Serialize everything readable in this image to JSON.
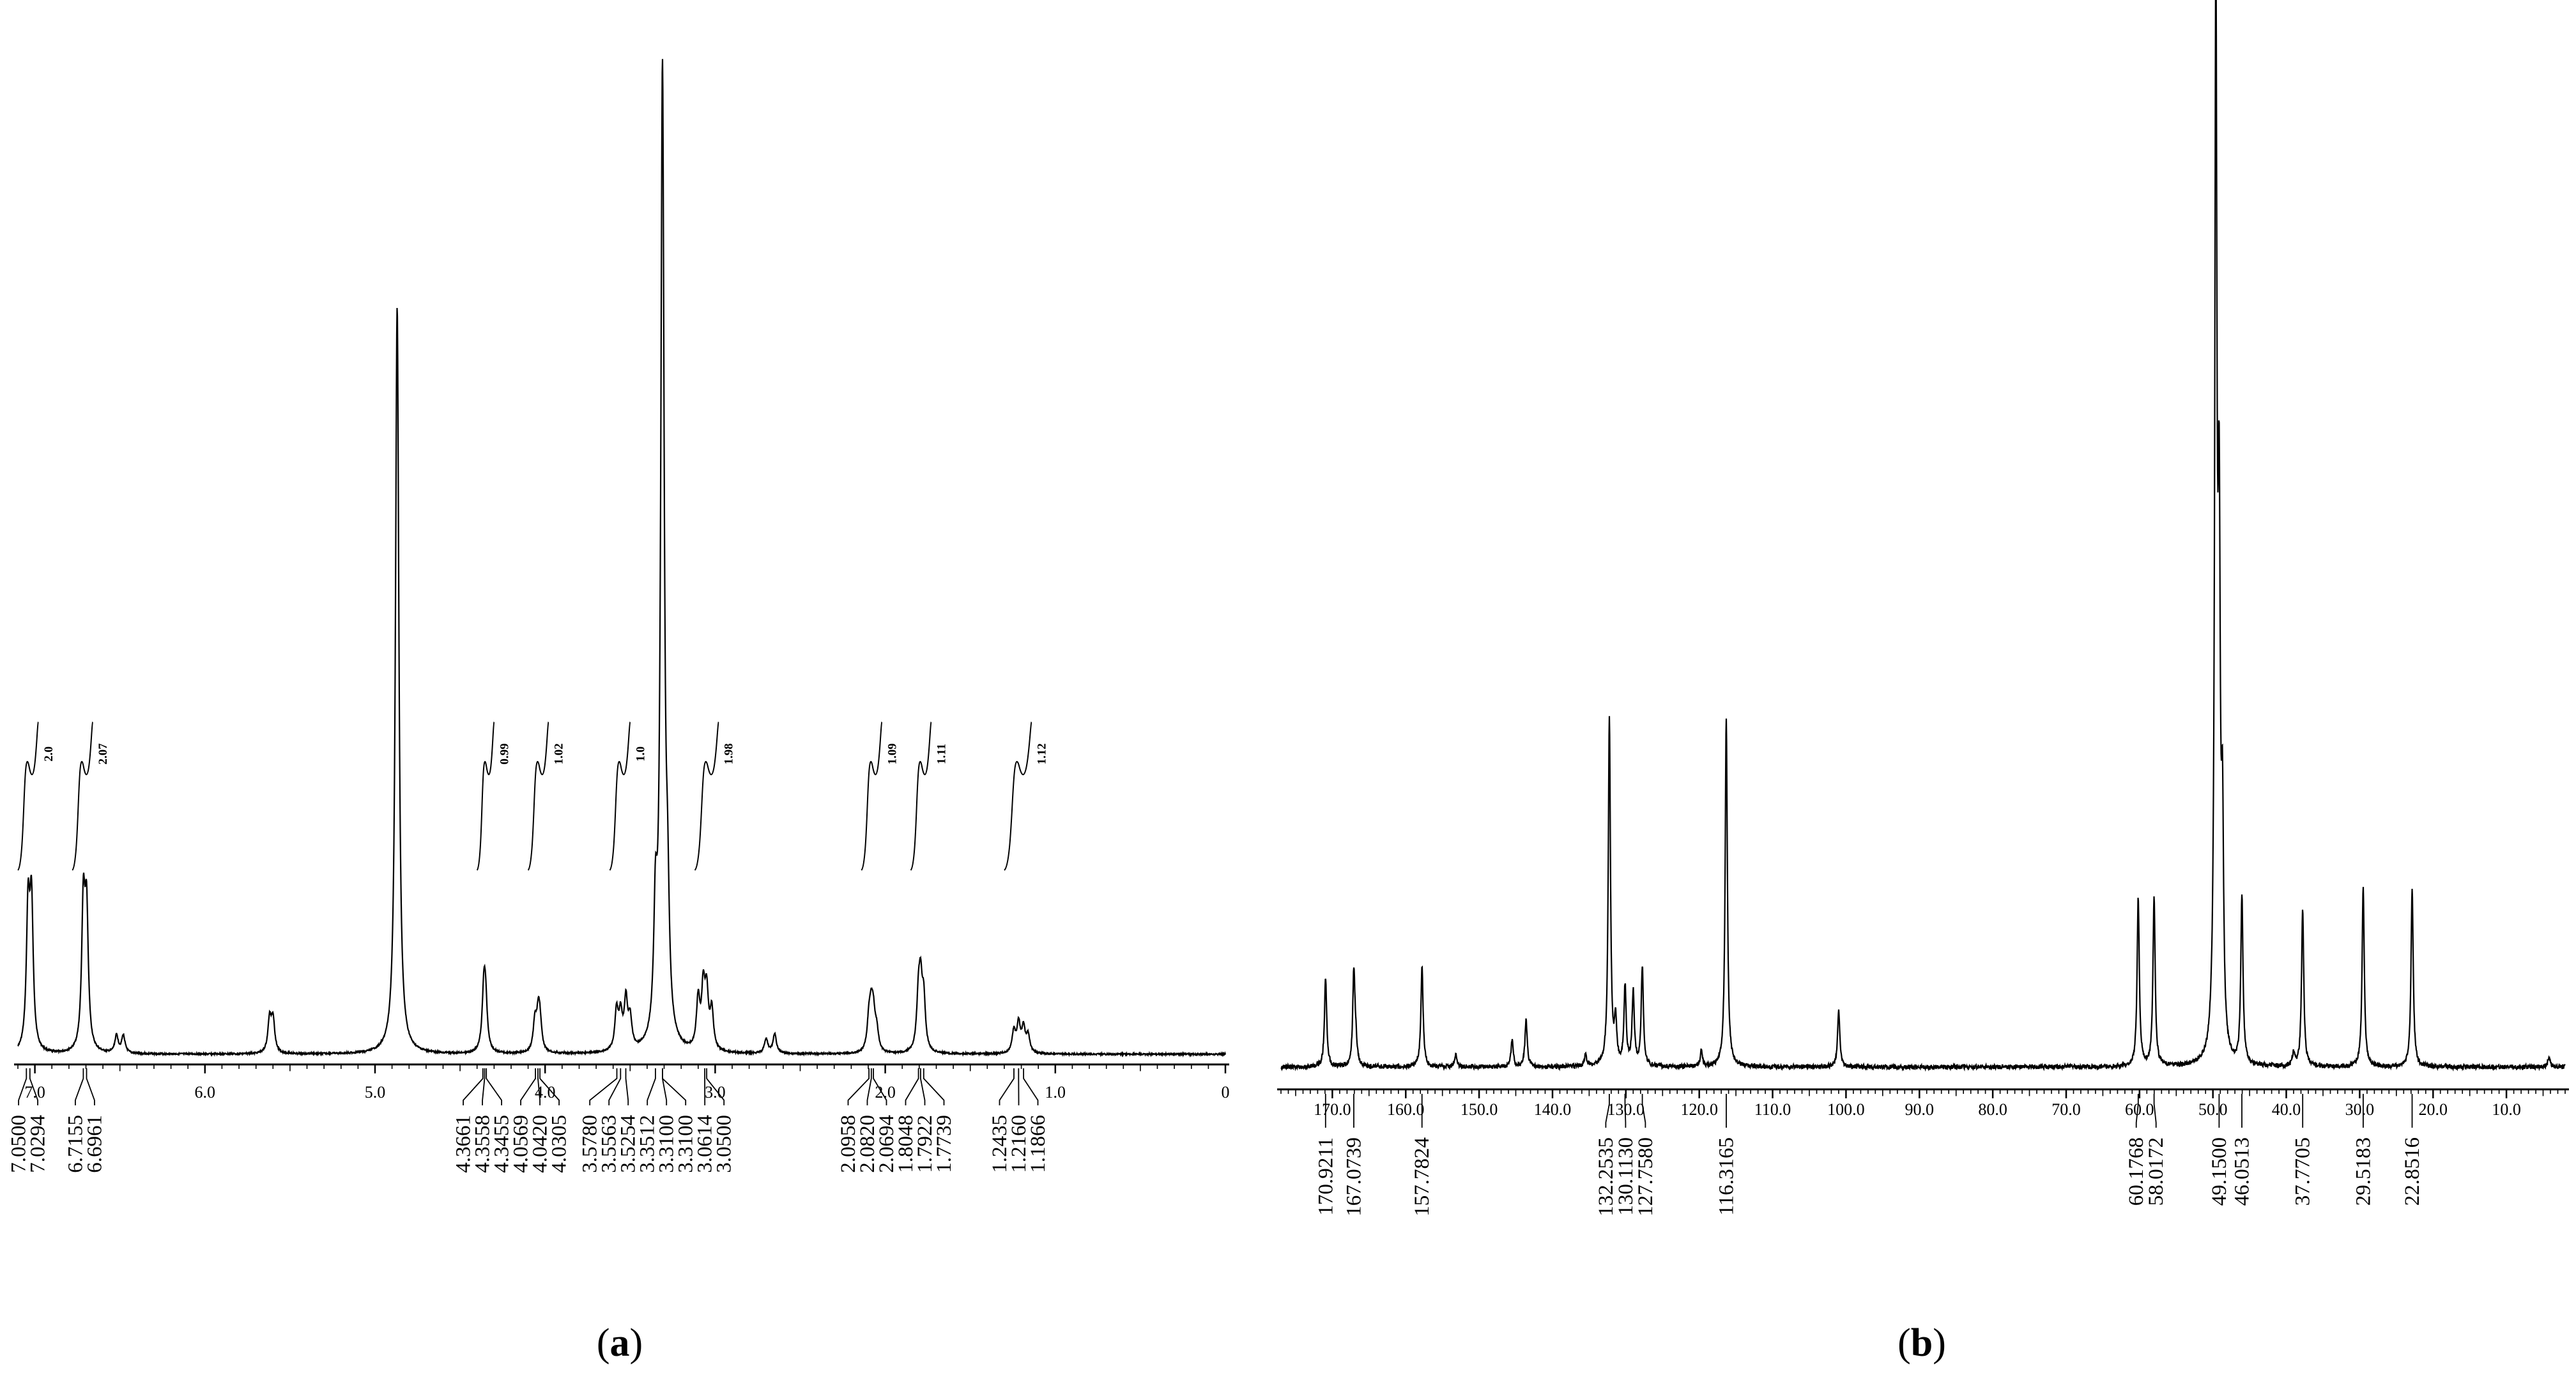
{
  "chart_data": [
    {
      "panel": "a",
      "panel_label": "a",
      "type": "line",
      "x_reversed": true,
      "xlim": [
        7.1,
        0.0
      ],
      "x_ticks": [
        "7.0",
        "6.0",
        "5.0",
        "4.0",
        "3.0",
        "2.0",
        "1.0",
        "0"
      ],
      "x_tick_values": [
        7.0,
        6.0,
        5.0,
        4.0,
        3.0,
        2.0,
        1.0,
        0.0
      ],
      "ylim": [
        0,
        1.0
      ],
      "peaks": [
        {
          "x": 7.04,
          "h": 0.14
        },
        {
          "x": 7.02,
          "h": 0.145
        },
        {
          "x": 6.715,
          "h": 0.145
        },
        {
          "x": 6.696,
          "h": 0.135
        },
        {
          "x": 6.52,
          "h": 0.018
        },
        {
          "x": 6.48,
          "h": 0.018
        },
        {
          "x": 5.62,
          "h": 0.034
        },
        {
          "x": 5.6,
          "h": 0.034
        },
        {
          "x": 4.87,
          "h": 0.77
        },
        {
          "x": 4.36,
          "h": 0.06
        },
        {
          "x": 4.35,
          "h": 0.045
        },
        {
          "x": 4.06,
          "h": 0.03
        },
        {
          "x": 4.04,
          "h": 0.035
        },
        {
          "x": 4.03,
          "h": 0.025
        },
        {
          "x": 3.58,
          "h": 0.04
        },
        {
          "x": 3.556,
          "h": 0.035
        },
        {
          "x": 3.525,
          "h": 0.05
        },
        {
          "x": 3.5,
          "h": 0.03
        },
        {
          "x": 3.351,
          "h": 0.12
        },
        {
          "x": 3.31,
          "h": 1.0
        },
        {
          "x": 3.28,
          "h": 0.11
        },
        {
          "x": 3.1,
          "h": 0.05
        },
        {
          "x": 3.07,
          "h": 0.06
        },
        {
          "x": 3.05,
          "h": 0.055
        },
        {
          "x": 3.02,
          "h": 0.04
        },
        {
          "x": 2.7,
          "h": 0.015
        },
        {
          "x": 2.65,
          "h": 0.02
        },
        {
          "x": 2.096,
          "h": 0.03
        },
        {
          "x": 2.082,
          "h": 0.038
        },
        {
          "x": 2.069,
          "h": 0.032
        },
        {
          "x": 2.05,
          "h": 0.02
        },
        {
          "x": 1.805,
          "h": 0.05
        },
        {
          "x": 1.792,
          "h": 0.06
        },
        {
          "x": 1.774,
          "h": 0.05
        },
        {
          "x": 1.244,
          "h": 0.022
        },
        {
          "x": 1.216,
          "h": 0.03
        },
        {
          "x": 1.187,
          "h": 0.025
        },
        {
          "x": 1.16,
          "h": 0.018
        }
      ],
      "peak_labels": [
        {
          "text": "7.0500",
          "x": 7.05
        },
        {
          "text": "7.0294",
          "x": 7.0294
        },
        {
          "text": "6.7155",
          "x": 6.7155
        },
        {
          "text": "6.6961",
          "x": 6.6961
        },
        {
          "text": "4.3661",
          "x": 4.3661
        },
        {
          "text": "4.3558",
          "x": 4.3558
        },
        {
          "text": "4.3455",
          "x": 4.3455
        },
        {
          "text": "4.0569",
          "x": 4.0569
        },
        {
          "text": "4.0420",
          "x": 4.042
        },
        {
          "text": "4.0305",
          "x": 4.0305
        },
        {
          "text": "3.5780",
          "x": 3.578
        },
        {
          "text": "3.5563",
          "x": 3.5563
        },
        {
          "text": "3.5254",
          "x": 3.5254
        },
        {
          "text": "3.3512",
          "x": 3.3512
        },
        {
          "text": "3.3100",
          "x": 3.31
        },
        {
          "text": "3.3100",
          "x": 3.31
        },
        {
          "text": "3.0614",
          "x": 3.0614
        },
        {
          "text": "3.0500",
          "x": 3.05
        },
        {
          "text": "2.0958",
          "x": 2.0958
        },
        {
          "text": "2.0820",
          "x": 2.082
        },
        {
          "text": "2.0694",
          "x": 2.0694
        },
        {
          "text": "1.8048",
          "x": 1.8048
        },
        {
          "text": "1.7922",
          "x": 1.7922
        },
        {
          "text": "1.7739",
          "x": 1.7739
        },
        {
          "text": "1.2435",
          "x": 1.2435
        },
        {
          "text": "1.2160",
          "x": 1.216
        },
        {
          "text": "1.1866",
          "x": 1.1866
        }
      ],
      "integrals": [
        {
          "label": "2.0",
          "from": 7.1,
          "to": 6.98
        },
        {
          "label": "2.07",
          "from": 6.78,
          "to": 6.66
        },
        {
          "label": "0.99",
          "from": 4.4,
          "to": 4.3
        },
        {
          "label": "1.02",
          "from": 4.1,
          "to": 3.98
        },
        {
          "label": "1.0",
          "from": 3.62,
          "to": 3.5
        },
        {
          "label": "1.98",
          "from": 3.12,
          "to": 2.98
        },
        {
          "label": "1.09",
          "from": 2.14,
          "to": 2.02
        },
        {
          "label": "1.11",
          "from": 1.85,
          "to": 1.73
        },
        {
          "label": "1.12",
          "from": 1.3,
          "to": 1.14
        }
      ]
    },
    {
      "panel": "b",
      "panel_label": "b",
      "type": "line",
      "x_reversed": true,
      "xlim": [
        177,
        2
      ],
      "x_ticks": [
        "170.0",
        "160.0",
        "150.0",
        "140.0",
        "130.0",
        "120.0",
        "110.0",
        "100.0",
        "90.0",
        "80.0",
        "70.0",
        "60.0",
        "50.0",
        "40.0",
        "30.0",
        "20.0",
        "10.0"
      ],
      "x_tick_values": [
        170,
        160,
        150,
        140,
        130,
        120,
        110,
        100,
        90,
        80,
        70,
        60,
        50,
        40,
        30,
        20,
        10
      ],
      "ylim": [
        0,
        1.0
      ],
      "peaks": [
        {
          "x": 170.92,
          "h": 0.085
        },
        {
          "x": 167.07,
          "h": 0.09
        },
        {
          "x": 166.8,
          "h": 0.02
        },
        {
          "x": 157.78,
          "h": 0.095
        },
        {
          "x": 153.2,
          "h": 0.012
        },
        {
          "x": 145.5,
          "h": 0.025
        },
        {
          "x": 143.6,
          "h": 0.045
        },
        {
          "x": 135.5,
          "h": 0.012
        },
        {
          "x": 132.25,
          "h": 0.33
        },
        {
          "x": 131.4,
          "h": 0.04
        },
        {
          "x": 130.11,
          "h": 0.075
        },
        {
          "x": 129.0,
          "h": 0.07
        },
        {
          "x": 127.76,
          "h": 0.095
        },
        {
          "x": 119.7,
          "h": 0.015
        },
        {
          "x": 116.32,
          "h": 0.33
        },
        {
          "x": 101.0,
          "h": 0.055
        },
        {
          "x": 60.18,
          "h": 0.16
        },
        {
          "x": 58.02,
          "h": 0.16
        },
        {
          "x": 49.6,
          "h": 1.0
        },
        {
          "x": 49.15,
          "h": 0.45
        },
        {
          "x": 48.7,
          "h": 0.2
        },
        {
          "x": 46.05,
          "h": 0.16
        },
        {
          "x": 39.0,
          "h": 0.012
        },
        {
          "x": 37.77,
          "h": 0.15
        },
        {
          "x": 29.52,
          "h": 0.17
        },
        {
          "x": 22.85,
          "h": 0.17
        },
        {
          "x": 4.2,
          "h": 0.01
        }
      ],
      "peak_labels": [
        {
          "text": "170.9211",
          "x": 170.9211
        },
        {
          "text": "167.0739",
          "x": 167.0739
        },
        {
          "text": "157.7824",
          "x": 157.7824
        },
        {
          "text": "132.2535",
          "x": 132.2535
        },
        {
          "text": "130.1130",
          "x": 130.113
        },
        {
          "text": "127.7580",
          "x": 127.758
        },
        {
          "text": "116.3165",
          "x": 116.3165
        },
        {
          "text": "60.1768",
          "x": 60.1768
        },
        {
          "text": "58.0172",
          "x": 58.0172
        },
        {
          "text": "49.1500",
          "x": 49.15
        },
        {
          "text": "46.0513",
          "x": 46.0513
        },
        {
          "text": "37.7705",
          "x": 37.7705
        },
        {
          "text": "29.5183",
          "x": 29.5183
        },
        {
          "text": "22.8516",
          "x": 22.8516
        }
      ]
    }
  ]
}
